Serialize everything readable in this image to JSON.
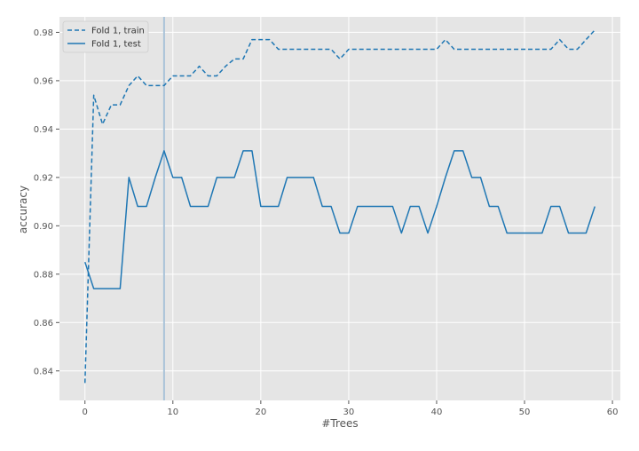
{
  "chart_data": {
    "type": "line",
    "xlabel": "#Trees",
    "ylabel": "accuracy",
    "xlim": [
      -2.9,
      60.9
    ],
    "ylim": [
      0.8278,
      0.9864
    ],
    "xticks": [
      0,
      10,
      20,
      30,
      40,
      50,
      60
    ],
    "yticks": [
      0.84,
      0.86,
      0.88,
      0.9,
      0.92,
      0.94,
      0.96,
      0.98
    ],
    "ytick_labels": [
      "0.84",
      "0.86",
      "0.88",
      "0.90",
      "0.92",
      "0.94",
      "0.96",
      "0.98"
    ],
    "grid": true,
    "legend": "top-left",
    "vline_x": 9,
    "series": [
      {
        "name": "Fold 1, train",
        "style": "dashed",
        "color": "#1f77b4",
        "x": [
          0,
          1,
          2,
          3,
          4,
          5,
          6,
          7,
          8,
          9,
          10,
          11,
          12,
          13,
          14,
          15,
          16,
          17,
          18,
          19,
          20,
          21,
          22,
          23,
          24,
          25,
          26,
          27,
          28,
          29,
          30,
          31,
          32,
          33,
          34,
          35,
          36,
          37,
          38,
          39,
          40,
          41,
          42,
          43,
          44,
          45,
          46,
          47,
          48,
          49,
          50,
          51,
          52,
          53,
          54,
          55,
          56,
          57,
          58
        ],
        "values": [
          0.835,
          0.954,
          0.942,
          0.95,
          0.95,
          0.958,
          0.962,
          0.958,
          0.958,
          0.958,
          0.962,
          0.962,
          0.962,
          0.966,
          0.962,
          0.962,
          0.966,
          0.969,
          0.969,
          0.977,
          0.977,
          0.977,
          0.973,
          0.973,
          0.973,
          0.973,
          0.973,
          0.973,
          0.973,
          0.969,
          0.973,
          0.973,
          0.973,
          0.973,
          0.973,
          0.973,
          0.973,
          0.973,
          0.973,
          0.973,
          0.973,
          0.977,
          0.973,
          0.973,
          0.973,
          0.973,
          0.973,
          0.973,
          0.973,
          0.973,
          0.973,
          0.973,
          0.973,
          0.973,
          0.977,
          0.973,
          0.973,
          0.977,
          0.981
        ]
      },
      {
        "name": "Fold 1, test",
        "style": "solid",
        "color": "#1f77b4",
        "x": [
          0,
          1,
          2,
          3,
          4,
          5,
          6,
          7,
          8,
          9,
          10,
          11,
          12,
          13,
          14,
          15,
          16,
          17,
          18,
          19,
          20,
          21,
          22,
          23,
          24,
          25,
          26,
          27,
          28,
          29,
          30,
          31,
          32,
          33,
          34,
          35,
          36,
          37,
          38,
          39,
          40,
          41,
          42,
          43,
          44,
          45,
          46,
          47,
          48,
          49,
          50,
          51,
          52,
          53,
          54,
          55,
          56,
          57,
          58
        ],
        "values": [
          0.885,
          0.874,
          0.874,
          0.874,
          0.874,
          0.92,
          0.908,
          0.908,
          0.92,
          0.931,
          0.92,
          0.92,
          0.908,
          0.908,
          0.908,
          0.92,
          0.92,
          0.92,
          0.931,
          0.931,
          0.908,
          0.908,
          0.908,
          0.92,
          0.92,
          0.92,
          0.92,
          0.908,
          0.908,
          0.897,
          0.897,
          0.908,
          0.908,
          0.908,
          0.908,
          0.908,
          0.897,
          0.908,
          0.908,
          0.897,
          0.908,
          0.92,
          0.931,
          0.931,
          0.92,
          0.92,
          0.908,
          0.908,
          0.897,
          0.897,
          0.897,
          0.897,
          0.897,
          0.908,
          0.908,
          0.897,
          0.897,
          0.897,
          0.908
        ]
      }
    ]
  }
}
